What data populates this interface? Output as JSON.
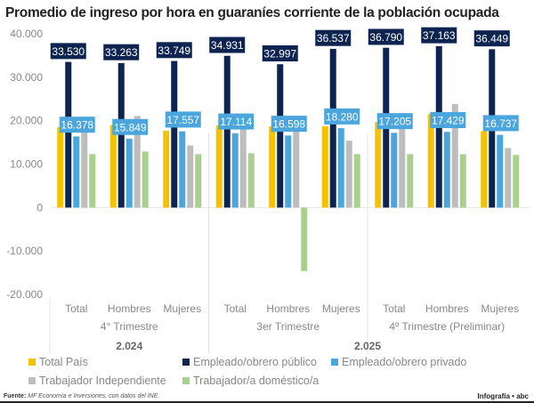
{
  "chart_data": {
    "type": "bar",
    "title": "Promedio de ingreso por hora en guaraníes corriente de la población ocupada",
    "ylim": [
      -20000,
      40000
    ],
    "yticks": [
      40000,
      30000,
      20000,
      10000,
      0,
      -10000,
      -20000
    ],
    "ytick_labels": [
      "40.000",
      "30.000",
      "20.000",
      "10.000",
      "0",
      "-10.000",
      "-20.000"
    ],
    "grid": false,
    "legend_position": "bottom",
    "categories": [
      "Total",
      "Hombres",
      "Mujeres",
      "Total",
      "Hombres",
      "Mujeres",
      "Total",
      "Hombres",
      "Mujeres"
    ],
    "periods": [
      {
        "label": "4° Trimestre",
        "span": 3
      },
      {
        "label": "3er Trimestre",
        "span": 3
      },
      {
        "label": "4º Trimestre (Preliminar)",
        "span": 3
      }
    ],
    "years": [
      {
        "label": "2.024",
        "span": 3
      },
      {
        "label": "2.025",
        "span": 6
      }
    ],
    "series": [
      {
        "name": "Total País",
        "color": "#f5c200",
        "values": [
          18500,
          19000,
          17700,
          18900,
          18700,
          18700,
          19700,
          21500,
          17600
        ]
      },
      {
        "name": "Empleado/obrero público",
        "color": "#0d2451",
        "values": [
          33530,
          33263,
          33749,
          34931,
          32997,
          36537,
          36790,
          37163,
          36449
        ],
        "labels": [
          "33.530",
          "33.263",
          "33.749",
          "34.931",
          "32.997",
          "36.537",
          "36.790",
          "37.163",
          "36.449"
        ]
      },
      {
        "name": "Empleado/obrero privado",
        "color": "#4aa6dc",
        "values": [
          16378,
          15849,
          17557,
          17114,
          16598,
          18280,
          17205,
          17429,
          16737
        ],
        "labels": [
          "16.378",
          "15.849",
          "17.557",
          "17.114",
          "16.598",
          "18.280",
          "17.205",
          "17.429",
          "16.737"
        ]
      },
      {
        "name": "Trabajador Independiente",
        "color": "#bdbdbd",
        "values": [
          18000,
          21100,
          14300,
          18000,
          18500,
          15400,
          19000,
          23800,
          13700
        ]
      },
      {
        "name": "Trabajador/a doméstico/a",
        "color": "#a9d08e",
        "values": [
          12300,
          12900,
          12300,
          12500,
          -14600,
          12300,
          12300,
          12300,
          12100
        ]
      }
    ]
  },
  "footer": {
    "source_label": "Fuente:",
    "source_text": "MF Economía e Inversiones, con datos del INE.",
    "brand": "Infografía • abc"
  }
}
